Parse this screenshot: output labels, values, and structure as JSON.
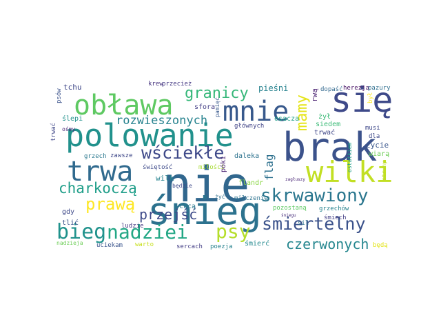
{
  "words": [
    {
      "text": "nie",
      "color": "#31678e",
      "weight": 100
    },
    {
      "text": "śnieg",
      "color": "#2c728e",
      "weight": 90
    },
    {
      "text": "brak",
      "color": "#3b528b",
      "weight": 85
    },
    {
      "text": "się",
      "color": "#3e4989",
      "weight": 80
    },
    {
      "text": "polowanie",
      "color": "#21918c",
      "weight": 75
    },
    {
      "text": "trwa",
      "color": "#306a8e",
      "weight": 72
    },
    {
      "text": "obława",
      "color": "#5ec962",
      "weight": 70
    },
    {
      "text": "mnie",
      "color": "#38598c",
      "weight": 68
    },
    {
      "text": "wilki",
      "color": "#c2df23",
      "weight": 65
    },
    {
      "text": "skrwawiony",
      "color": "#2a768e",
      "weight": 55
    },
    {
      "text": "bieg",
      "color": "#20928c",
      "weight": 52
    },
    {
      "text": "nadziei",
      "color": "#22a785",
      "weight": 50
    },
    {
      "text": "śmiertelny",
      "color": "#3b528b",
      "weight": 48
    },
    {
      "text": "psy",
      "color": "#b5de2b",
      "weight": 48
    },
    {
      "text": "charkoczą",
      "color": "#1f9e89",
      "weight": 45
    },
    {
      "text": "wściekłe",
      "color": "#3e4989",
      "weight": 45
    },
    {
      "text": "granicy",
      "color": "#35b779",
      "weight": 42
    },
    {
      "text": "mamy",
      "color": "#e5e419",
      "weight": 42
    },
    {
      "text": "prawą",
      "color": "#fde725",
      "weight": 40
    },
    {
      "text": "rozwieszonych",
      "color": "#26828e",
      "weight": 38
    },
    {
      "text": "czerwonych",
      "color": "#24868e",
      "weight": 37
    },
    {
      "text": "przejść",
      "color": "#3e4a89",
      "weight": 35
    },
    {
      "text": "flag",
      "color": "#2d708e",
      "weight": 30
    },
    {
      "text": "tchu",
      "color": "#3f4889",
      "weight": 20
    },
    {
      "text": "krew",
      "color": "#46337e",
      "weight": 18
    },
    {
      "text": "przecież",
      "color": "#443983",
      "weight": 18
    },
    {
      "text": "pieśni",
      "color": "#26828e",
      "weight": 22
    },
    {
      "text": "dopaść",
      "color": "#31688e",
      "weight": 18
    },
    {
      "text": "herezja",
      "color": "#471164",
      "weight": 18
    },
    {
      "text": "pazury",
      "color": "#2e6e8e",
      "weight": 18
    },
    {
      "text": "psów",
      "color": "#3b528b",
      "weight": 15
    },
    {
      "text": "ślepi",
      "color": "#21918c",
      "weight": 15
    },
    {
      "text": "ośle",
      "color": "#3e4989",
      "weight": 15
    },
    {
      "text": "ośle",
      "color": "#3e4989",
      "weight": 15
    },
    {
      "text": "rwą",
      "color": "#481f70",
      "weight": 16
    },
    {
      "text": "głównych",
      "color": "#414487",
      "weight": 16
    },
    {
      "text": "osacza",
      "color": "#1fa088",
      "weight": 16
    },
    {
      "text": "siedem",
      "color": "#3aba76",
      "weight": 16
    },
    {
      "text": "żył",
      "color": "#3aba76",
      "weight": 16
    },
    {
      "text": "musi",
      "color": "#3f4889",
      "weight": 14
    },
    {
      "text": "dla",
      "color": "#3e4989",
      "weight": 14
    },
    {
      "text": "sfora",
      "color": "#433e85",
      "weight": 16
    },
    {
      "text": "pamięć",
      "color": "#38598c",
      "weight": 14
    },
    {
      "text": "ośmy",
      "color": "#482878",
      "weight": 14
    },
    {
      "text": "trwać",
      "color": "#3f4788",
      "weight": 16
    },
    {
      "text": "grzech",
      "color": "#2a788e",
      "weight": 15
    },
    {
      "text": "zawsze",
      "color": "#3f4889",
      "weight": 14
    },
    {
      "text": "świętość",
      "color": "#3e4a89",
      "weight": 14
    },
    {
      "text": "miłości",
      "color": "#a8db34",
      "weight": 14
    },
    {
      "text": "daleka",
      "color": "#2c728e",
      "weight": 16
    },
    {
      "text": "życie",
      "color": "#39568c",
      "weight": 16
    },
    {
      "text": "wiarą",
      "color": "#6ece58",
      "weight": 16
    },
    {
      "text": "ostatkiem",
      "color": "#1f9e89",
      "weight": 14
    },
    {
      "text": "struny",
      "color": "#b8de29",
      "weight": 14
    },
    {
      "text": "wilk",
      "color": "#26828e",
      "weight": 18
    },
    {
      "text": "będzie",
      "color": "#3e4989",
      "weight": 14
    },
    {
      "text": "póki",
      "color": "#482071",
      "weight": 16
    },
    {
      "text": "flandr",
      "color": "#8bd646",
      "weight": 16
    },
    {
      "text": "sil",
      "color": "#2d718e",
      "weight": 15
    },
    {
      "text": "gdy",
      "color": "#3e4989",
      "weight": 16
    },
    {
      "text": "chcą",
      "color": "#2a778e",
      "weight": 16
    },
    {
      "text": "żyć",
      "color": "#2e6f8e",
      "weight": 14
    },
    {
      "text": "milczenie",
      "color": "#2c728e",
      "weight": 16
    },
    {
      "text": "pozostaną",
      "color": "#5ec962",
      "weight": 16
    },
    {
      "text": "śmiech",
      "color": "#433e85",
      "weight": 16
    },
    {
      "text": "grzechów",
      "color": "#26828e",
      "weight": 14
    },
    {
      "text": "tlić",
      "color": "#3b528b",
      "weight": 16
    },
    {
      "text": "ludzie",
      "color": "#443983",
      "weight": 14
    },
    {
      "text": "nadzieja",
      "color": "#6ece58",
      "weight": 14
    },
    {
      "text": "warto",
      "color": "#c8e020",
      "weight": 14
    },
    {
      "text": "uciekam",
      "color": "#3a548c",
      "weight": 15
    },
    {
      "text": "sercach",
      "color": "#433e85",
      "weight": 15
    },
    {
      "text": "poezja",
      "color": "#26828e",
      "weight": 15
    },
    {
      "text": "śmierć",
      "color": "#23898e",
      "weight": 16
    },
    {
      "text": "będą",
      "color": "#e2e418",
      "weight": 15
    },
    {
      "text": "był",
      "color": "#fde725",
      "weight": 15
    },
    {
      "text": "śniegu",
      "color": "#472c7a",
      "weight": 10
    },
    {
      "text": "zagłuszy",
      "color": "#482575",
      "weight": 10
    }
  ]
}
